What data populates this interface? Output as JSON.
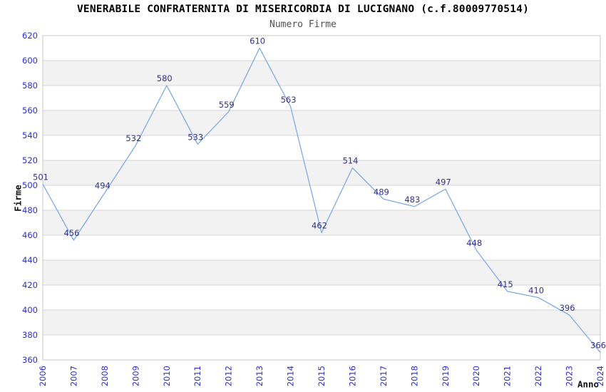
{
  "header": {
    "title": "VENERABILE CONFRATERNITA DI MISERICORDIA DI LUCIGNANO (c.f.80009770514)",
    "subtitle": "Numero Firme"
  },
  "chart_data": {
    "type": "line",
    "title": "VENERABILE CONFRATERNITA DI MISERICORDIA DI LUCIGNANO (c.f.80009770514)",
    "subtitle": "Numero Firme",
    "xlabel": "Anno",
    "ylabel": "Firme",
    "categories": [
      "2006",
      "2007",
      "2008",
      "2009",
      "2010",
      "2011",
      "2012",
      "2013",
      "2014",
      "2015",
      "2016",
      "2017",
      "2018",
      "2019",
      "2020",
      "2021",
      "2022",
      "2023",
      "2024"
    ],
    "values": [
      501,
      456,
      494,
      532,
      580,
      533,
      559,
      610,
      563,
      462,
      514,
      489,
      483,
      497,
      448,
      415,
      410,
      396,
      366
    ],
    "ylim": [
      360,
      620
    ],
    "ytick_step": 20,
    "grid": true,
    "legend_position": "none",
    "band_pattern": "alternating horizontal 20-unit bands, gray from 380-400 upward",
    "colors": {
      "line": "#7dabe4",
      "data_label": "#32328a",
      "tick_label": "#2d2dd2",
      "band": "#f2f2f2",
      "grid": "#d6d6d6",
      "border": "#c9c9c9",
      "subtitle": "#4f4f4f",
      "title": "#000000"
    }
  }
}
